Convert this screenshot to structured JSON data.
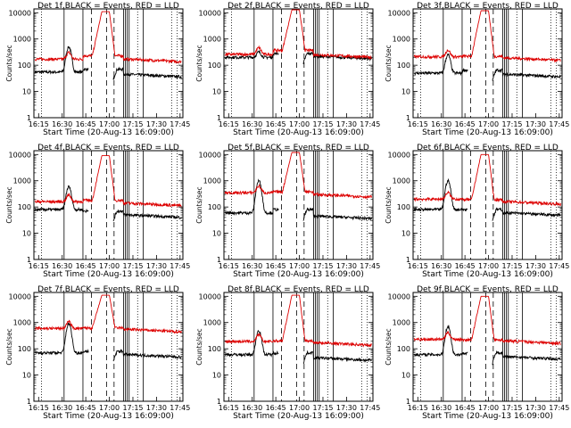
{
  "chart_data": [
    {
      "title": "Det 1f,BLACK = Events, RED = LLD",
      "xlabel": "Start Time (20-Aug-13 16:09:00)",
      "ylabel": "Counts/sec",
      "type": "line",
      "y_scale": "log",
      "ylim": [
        1,
        14000
      ],
      "xlim": [
        16.2,
        17.78
      ],
      "x_ticks": [
        "16:15",
        "16:30",
        "16:45",
        "17:00",
        "17:15",
        "17:30",
        "17:45"
      ],
      "y_ticks": [
        "1",
        "10",
        "100",
        "1000",
        "10000"
      ],
      "series": [
        {
          "color": "#000000",
          "base": [
            55,
            70,
            45
          ],
          "peak": 500
        },
        {
          "color": "#dd0000",
          "base": [
            170,
            230,
            170
          ],
          "peak": 11000
        }
      ]
    },
    {
      "title": "Det 2f,BLACK = Events, RED = LLD",
      "xlabel": "Start Time (20-Aug-13 16:09:00)",
      "ylabel": "Counts/sec",
      "type": "line",
      "y_scale": "log",
      "ylim": [
        1,
        14000
      ],
      "xlim": [
        16.2,
        17.78
      ],
      "x_ticks": [
        "16:15",
        "16:30",
        "16:45",
        "17:00",
        "17:15",
        "17:30",
        "17:45"
      ],
      "y_ticks": [
        "1",
        "10",
        "100",
        "1000",
        "10000"
      ],
      "series": [
        {
          "color": "#000000",
          "base": [
            200,
            280,
            220
          ],
          "peak": 320
        },
        {
          "color": "#dd0000",
          "base": [
            260,
            370,
            250
          ],
          "peak": 13000
        }
      ]
    },
    {
      "title": "Det 3f,BLACK = Events, RED = LLD",
      "xlabel": "Start Time (20-Aug-13 16:09:00)",
      "ylabel": "Counts/sec",
      "type": "line",
      "y_scale": "log",
      "ylim": [
        1,
        14000
      ],
      "xlim": [
        16.2,
        17.78
      ],
      "x_ticks": [
        "16:15",
        "16:30",
        "16:45",
        "17:00",
        "17:15",
        "17:30",
        "17:45"
      ],
      "y_ticks": [
        "1",
        "10",
        "100",
        "1000",
        "10000"
      ],
      "series": [
        {
          "color": "#000000",
          "base": [
            50,
            65,
            45
          ],
          "peak": 250
        },
        {
          "color": "#dd0000",
          "base": [
            210,
            220,
            190
          ],
          "peak": 12000
        }
      ]
    },
    {
      "title": "Det 4f,BLACK = Events, RED = LLD",
      "xlabel": "Start Time (20-Aug-13 16:09:00)",
      "ylabel": "Counts/sec",
      "type": "line",
      "y_scale": "log",
      "ylim": [
        1,
        14000
      ],
      "xlim": [
        16.2,
        17.78
      ],
      "x_ticks": [
        "16:15",
        "16:30",
        "16:45",
        "17:00",
        "17:15",
        "17:30",
        "17:45"
      ],
      "y_ticks": [
        "1",
        "10",
        "100",
        "1000",
        "10000"
      ],
      "series": [
        {
          "color": "#000000",
          "base": [
            80,
            70,
            50
          ],
          "peak": 600
        },
        {
          "color": "#dd0000",
          "base": [
            160,
            180,
            140
          ],
          "peak": 9000
        }
      ]
    },
    {
      "title": "Det 5f,BLACK = Events, RED = LLD",
      "xlabel": "Start Time (20-Aug-13 16:09:00)",
      "ylabel": "Counts/sec",
      "type": "line",
      "y_scale": "log",
      "ylim": [
        1,
        14000
      ],
      "xlim": [
        16.2,
        17.78
      ],
      "x_ticks": [
        "16:15",
        "16:30",
        "16:45",
        "17:00",
        "17:15",
        "17:30",
        "17:45"
      ],
      "y_ticks": [
        "1",
        "10",
        "100",
        "1000",
        "10000"
      ],
      "series": [
        {
          "color": "#000000",
          "base": [
            60,
            80,
            45
          ],
          "peak": 1000
        },
        {
          "color": "#dd0000",
          "base": [
            350,
            380,
            300
          ],
          "peak": 12000
        }
      ]
    },
    {
      "title": "Det 6f,BLACK = Events, RED = LLD",
      "xlabel": "Start Time (20-Aug-13 16:09:00)",
      "ylabel": "Counts/sec",
      "type": "line",
      "y_scale": "log",
      "ylim": [
        1,
        14000
      ],
      "xlim": [
        16.2,
        17.78
      ],
      "x_ticks": [
        "16:15",
        "16:30",
        "16:45",
        "17:00",
        "17:15",
        "17:30",
        "17:45"
      ],
      "y_ticks": [
        "1",
        "10",
        "100",
        "1000",
        "10000"
      ],
      "series": [
        {
          "color": "#000000",
          "base": [
            80,
            80,
            60
          ],
          "peak": 1000
        },
        {
          "color": "#dd0000",
          "base": [
            200,
            190,
            160
          ],
          "peak": 10000
        }
      ]
    },
    {
      "title": "Det 7f,BLACK = Events, RED = LLD",
      "xlabel": "Start Time (20-Aug-13 16:09:00)",
      "ylabel": "Counts/sec",
      "type": "line",
      "y_scale": "log",
      "ylim": [
        1,
        14000
      ],
      "xlim": [
        16.2,
        17.78
      ],
      "x_ticks": [
        "16:15",
        "16:30",
        "16:45",
        "17:00",
        "17:15",
        "17:30",
        "17:45"
      ],
      "y_ticks": [
        "1",
        "10",
        "100",
        "1000",
        "10000"
      ],
      "series": [
        {
          "color": "#000000",
          "base": [
            70,
            80,
            60
          ],
          "peak": 900
        },
        {
          "color": "#dd0000",
          "base": [
            600,
            620,
            550
          ],
          "peak": 11000
        }
      ]
    },
    {
      "title": "Det 8f,BLACK = Events, RED = LLD",
      "xlabel": "Start Time (20-Aug-13 16:09:00)",
      "ylabel": "Counts/sec",
      "type": "line",
      "y_scale": "log",
      "ylim": [
        1,
        14000
      ],
      "xlim": [
        16.2,
        17.78
      ],
      "x_ticks": [
        "16:15",
        "16:30",
        "16:45",
        "17:00",
        "17:15",
        "17:30",
        "17:45"
      ],
      "y_ticks": [
        "1",
        "10",
        "100",
        "1000",
        "10000"
      ],
      "series": [
        {
          "color": "#000000",
          "base": [
            60,
            70,
            45
          ],
          "peak": 500
        },
        {
          "color": "#dd0000",
          "base": [
            190,
            200,
            170
          ],
          "peak": 11000
        }
      ]
    },
    {
      "title": "Det 9f,BLACK = Events, RED = LLD",
      "xlabel": "Start Time (20-Aug-13 16:09:00)",
      "ylabel": "Counts/sec",
      "type": "line",
      "y_scale": "log",
      "ylim": [
        1,
        14000
      ],
      "xlim": [
        16.2,
        17.78
      ],
      "x_ticks": [
        "16:15",
        "16:30",
        "16:45",
        "17:00",
        "17:15",
        "17:30",
        "17:45"
      ],
      "y_ticks": [
        "1",
        "10",
        "100",
        "1000",
        "10000"
      ],
      "series": [
        {
          "color": "#000000",
          "base": [
            60,
            70,
            50
          ],
          "peak": 700
        },
        {
          "color": "#dd0000",
          "base": [
            230,
            220,
            200
          ],
          "peak": 10000
        }
      ]
    }
  ],
  "markers": {
    "solid_times": [
      16.52,
      16.72,
      17.15,
      17.17,
      17.19,
      17.21,
      17.36
    ],
    "dashed_times": [
      16.81,
      16.97,
      17.05
    ],
    "dotted_times": [
      17.3,
      17.66,
      17.72
    ]
  }
}
